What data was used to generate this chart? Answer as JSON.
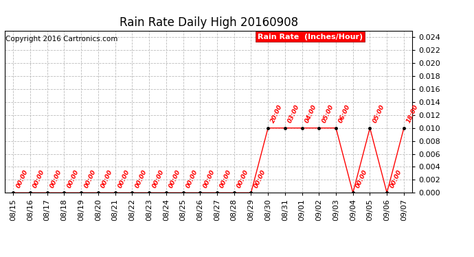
{
  "title": "Rain Rate Daily High 20160908",
  "copyright": "Copyright 2016 Cartronics.com",
  "legend_label": "Rain Rate  (Inches/Hour)",
  "x_labels": [
    "08/15",
    "08/16",
    "08/17",
    "08/18",
    "08/19",
    "08/20",
    "08/21",
    "08/22",
    "08/23",
    "08/24",
    "08/25",
    "08/26",
    "08/27",
    "08/28",
    "08/29",
    "08/30",
    "08/31",
    "09/01",
    "09/02",
    "09/03",
    "09/04",
    "09/05",
    "09/06",
    "09/07"
  ],
  "y_values": [
    0.0,
    0.0,
    0.0,
    0.0,
    0.0,
    0.0,
    0.0,
    0.0,
    0.0,
    0.0,
    0.0,
    0.0,
    0.0,
    0.0,
    0.0,
    0.01,
    0.01,
    0.01,
    0.01,
    0.01,
    0.0,
    0.01,
    0.0,
    0.01
  ],
  "time_labels": [
    "00:00",
    "00:00",
    "00:00",
    "00:00",
    "00:00",
    "00:00",
    "00:00",
    "00:00",
    "00:00",
    "00:00",
    "00:00",
    "00:00",
    "00:00",
    "00:00",
    "00:00",
    "20:00",
    "03:00",
    "04:00",
    "05:00",
    "06:00",
    "00:00",
    "05:00",
    "00:00",
    "18:00"
  ],
  "line_color": "#ff0000",
  "marker_color": "#000000",
  "bg_color": "#ffffff",
  "grid_color": "#bbbbbb",
  "ylim": [
    0.0,
    0.025
  ],
  "yticks": [
    0.0,
    0.002,
    0.004,
    0.006,
    0.008,
    0.01,
    0.012,
    0.014,
    0.016,
    0.018,
    0.02,
    0.022,
    0.024
  ],
  "title_fontsize": 12,
  "copyright_fontsize": 7.5,
  "tick_label_fontsize": 8,
  "annotation_fontsize": 6.5,
  "legend_fontsize": 8
}
